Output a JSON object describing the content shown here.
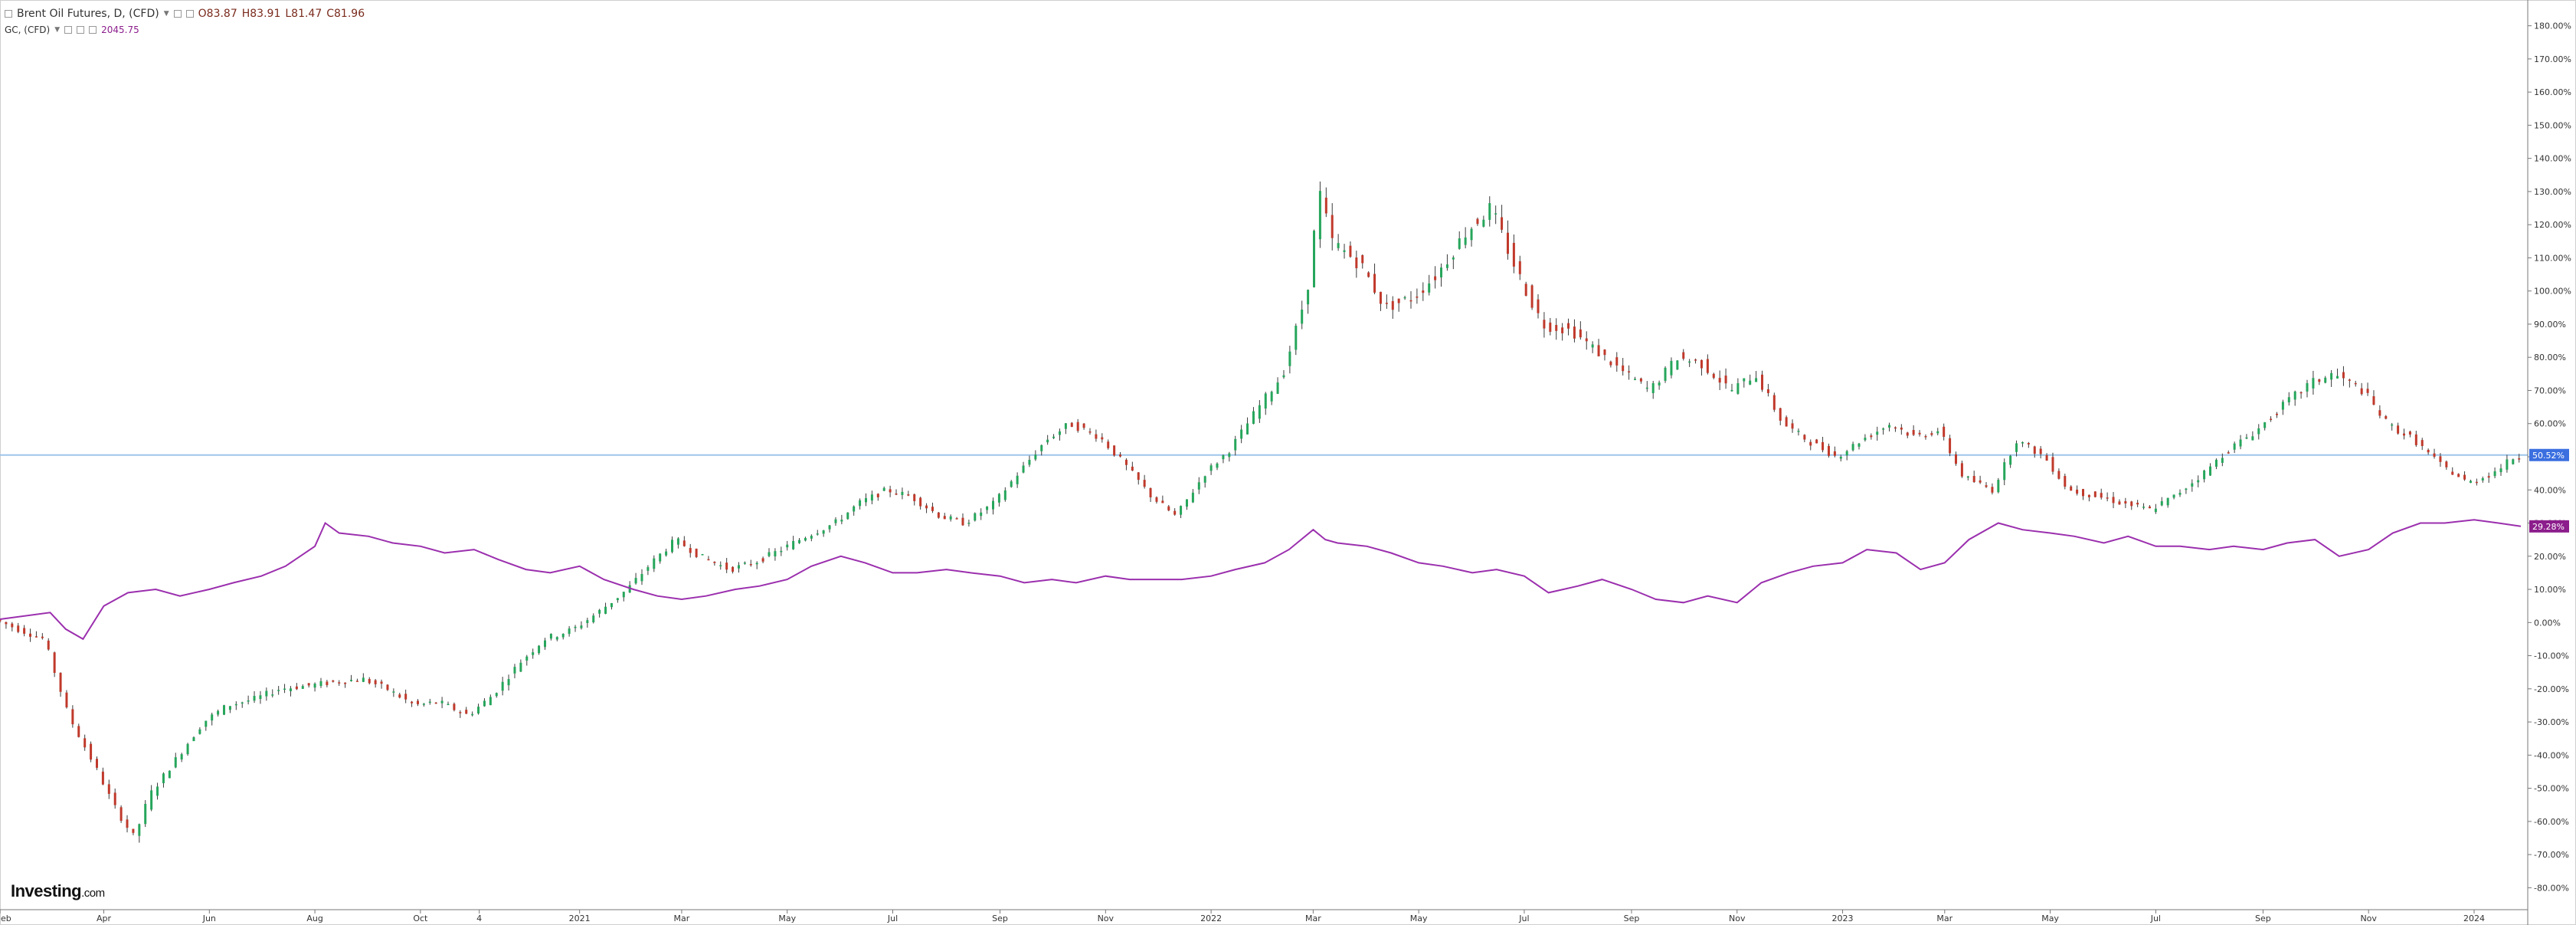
{
  "legend": {
    "symbol": "Brent Oil Futures, D, (CFD)",
    "open_label": "O83.87",
    "high_label": "H83.91",
    "low_label": "L81.47",
    "close_label": "C81.96",
    "gc_symbol": "GC, (CFD)",
    "gc_value": "2045.75"
  },
  "logo": {
    "main": "Investing",
    "suffix": ".com"
  },
  "colors": {
    "up": "#26a65b",
    "down": "#c0392b",
    "wick": "#3a3a3a",
    "gold_line": "#9b2fae",
    "hline": "#9ec5ea",
    "oil_badge": "#3b6fe0",
    "gold_badge": "#8c1d8c",
    "axis": "#555555"
  },
  "chart_data": {
    "type": "line",
    "title": "Brent Oil Futures, D, (CFD)",
    "ylim": [
      -85,
      185
    ],
    "y_ticks": [
      "180.00%",
      "170.00%",
      "160.00%",
      "150.00%",
      "140.00%",
      "130.00%",
      "120.00%",
      "110.00%",
      "100.00%",
      "90.00%",
      "80.00%",
      "70.00%",
      "60.00%",
      "50.00%",
      "40.00%",
      "30.00%",
      "20.00%",
      "10.00%",
      "0.00%",
      "-10.00%",
      "-20.00%",
      "-30.00%",
      "-40.00%",
      "-50.00%",
      "-60.00%",
      "-70.00%",
      "-80.00%"
    ],
    "y_tick_values": [
      180,
      170,
      160,
      150,
      140,
      130,
      120,
      110,
      100,
      90,
      80,
      70,
      60,
      50,
      40,
      30,
      20,
      10,
      0,
      -10,
      -20,
      -30,
      -40,
      -50,
      -60,
      -70,
      -80
    ],
    "x_ticks": [
      "eb",
      "Apr",
      "Jun",
      "Aug",
      "Oct",
      "4",
      "2021",
      "Mar",
      "May",
      "Jul",
      "Sep",
      "Nov",
      "2022",
      "Mar",
      "May",
      "Jul",
      "Sep",
      "Nov",
      "2023",
      "Mar",
      "May",
      "Jul",
      "Sep",
      "Nov",
      "2024"
    ],
    "x_tick_values": [
      "2020-02-01",
      "2020-04-01",
      "2020-06-01",
      "2020-08-01",
      "2020-10-01",
      "2020-11-04",
      "2021-01-01",
      "2021-03-01",
      "2021-05-01",
      "2021-07-01",
      "2021-09-01",
      "2021-11-01",
      "2022-01-01",
      "2022-03-01",
      "2022-05-01",
      "2022-07-01",
      "2022-09-01",
      "2022-11-01",
      "2023-01-01",
      "2023-03-01",
      "2023-05-01",
      "2023-07-01",
      "2023-09-01",
      "2023-11-01",
      "2024-01-01"
    ],
    "xlim": [
      "2020-02-01",
      "2024-02-01"
    ],
    "reference_line": 50.52,
    "badges": [
      "50.52%",
      "29.28%"
    ],
    "series": [
      {
        "name": "Brent Oil Futures, D, (CFD)",
        "kind": "candlestick",
        "x": [
          "2020-02-01",
          "2020-02-15",
          "2020-03-01",
          "2020-03-15",
          "2020-04-01",
          "2020-04-10",
          "2020-04-22",
          "2020-05-01",
          "2020-05-15",
          "2020-06-01",
          "2020-06-15",
          "2020-07-01",
          "2020-07-15",
          "2020-08-01",
          "2020-08-15",
          "2020-09-01",
          "2020-09-15",
          "2020-10-01",
          "2020-10-15",
          "2020-11-01",
          "2020-11-15",
          "2020-12-01",
          "2020-12-15",
          "2021-01-01",
          "2021-01-15",
          "2021-02-01",
          "2021-02-15",
          "2021-03-01",
          "2021-03-15",
          "2021-04-01",
          "2021-04-15",
          "2021-05-01",
          "2021-05-15",
          "2021-06-01",
          "2021-06-15",
          "2021-07-01",
          "2021-07-15",
          "2021-08-01",
          "2021-08-15",
          "2021-09-01",
          "2021-09-15",
          "2021-10-01",
          "2021-10-15",
          "2021-11-01",
          "2021-11-15",
          "2021-12-01",
          "2021-12-15",
          "2022-01-01",
          "2022-01-15",
          "2022-02-01",
          "2022-02-15",
          "2022-03-01",
          "2022-03-08",
          "2022-03-15",
          "2022-04-01",
          "2022-04-15",
          "2022-05-01",
          "2022-05-15",
          "2022-06-01",
          "2022-06-15",
          "2022-07-01",
          "2022-07-15",
          "2022-08-01",
          "2022-08-15",
          "2022-09-01",
          "2022-09-15",
          "2022-10-01",
          "2022-10-15",
          "2022-11-01",
          "2022-11-15",
          "2022-12-01",
          "2022-12-15",
          "2023-01-01",
          "2023-01-15",
          "2023-02-01",
          "2023-02-15",
          "2023-03-01",
          "2023-03-15",
          "2023-04-01",
          "2023-04-15",
          "2023-05-01",
          "2023-05-15",
          "2023-06-01",
          "2023-06-15",
          "2023-07-01",
          "2023-07-15",
          "2023-08-01",
          "2023-08-15",
          "2023-09-01",
          "2023-09-15",
          "2023-10-01",
          "2023-10-15",
          "2023-11-01",
          "2023-11-15",
          "2023-12-01",
          "2023-12-15",
          "2024-01-01",
          "2024-01-15",
          "2024-01-28"
        ],
        "values": [
          1,
          -2,
          -5,
          -28,
          -45,
          -55,
          -65,
          -52,
          -42,
          -30,
          -25,
          -23,
          -20,
          -19,
          -18,
          -17,
          -20,
          -25,
          -24,
          -28,
          -22,
          -12,
          -5,
          -2,
          3,
          10,
          18,
          25,
          20,
          16,
          18,
          22,
          26,
          30,
          36,
          40,
          38,
          32,
          30,
          36,
          45,
          55,
          60,
          56,
          48,
          38,
          32,
          45,
          52,
          65,
          75,
          100,
          130,
          115,
          108,
          95,
          98,
          105,
          118,
          125,
          105,
          90,
          88,
          82,
          75,
          70,
          80,
          78,
          70,
          75,
          60,
          55,
          50,
          55,
          60,
          56,
          58,
          44,
          40,
          55,
          50,
          40,
          38,
          36,
          34,
          38,
          45,
          52,
          58,
          65,
          72,
          75,
          70,
          60,
          55,
          48,
          42,
          45,
          50
        ]
      },
      {
        "name": "GC, (CFD)",
        "kind": "line",
        "x": [
          "2020-02-01",
          "2020-03-01",
          "2020-03-10",
          "2020-03-20",
          "2020-04-01",
          "2020-04-15",
          "2020-05-01",
          "2020-05-15",
          "2020-06-01",
          "2020-06-15",
          "2020-07-01",
          "2020-07-15",
          "2020-08-01",
          "2020-08-07",
          "2020-08-15",
          "2020-09-01",
          "2020-09-15",
          "2020-10-01",
          "2020-10-15",
          "2020-11-01",
          "2020-11-15",
          "2020-12-01",
          "2020-12-15",
          "2021-01-01",
          "2021-01-15",
          "2021-02-01",
          "2021-02-15",
          "2021-03-01",
          "2021-03-15",
          "2021-04-01",
          "2021-04-15",
          "2021-05-01",
          "2021-05-15",
          "2021-06-01",
          "2021-06-15",
          "2021-07-01",
          "2021-07-15",
          "2021-08-01",
          "2021-08-15",
          "2021-09-01",
          "2021-09-15",
          "2021-10-01",
          "2021-10-15",
          "2021-11-01",
          "2021-11-15",
          "2021-12-01",
          "2021-12-15",
          "2022-01-01",
          "2022-01-15",
          "2022-02-01",
          "2022-02-15",
          "2022-03-01",
          "2022-03-08",
          "2022-03-15",
          "2022-04-01",
          "2022-04-15",
          "2022-05-01",
          "2022-05-15",
          "2022-06-01",
          "2022-06-15",
          "2022-07-01",
          "2022-07-15",
          "2022-08-01",
          "2022-08-15",
          "2022-09-01",
          "2022-09-15",
          "2022-10-01",
          "2022-10-15",
          "2022-11-01",
          "2022-11-15",
          "2022-12-01",
          "2022-12-15",
          "2023-01-01",
          "2023-01-15",
          "2023-02-01",
          "2023-02-15",
          "2023-03-01",
          "2023-03-15",
          "2023-04-01",
          "2023-04-15",
          "2023-05-01",
          "2023-05-15",
          "2023-06-01",
          "2023-06-15",
          "2023-07-01",
          "2023-07-15",
          "2023-08-01",
          "2023-08-15",
          "2023-09-01",
          "2023-09-15",
          "2023-10-01",
          "2023-10-15",
          "2023-11-01",
          "2023-11-15",
          "2023-12-01",
          "2023-12-15",
          "2024-01-01",
          "2024-01-15",
          "2024-01-28"
        ],
        "values": [
          1,
          3,
          -2,
          -5,
          5,
          9,
          10,
          8,
          10,
          12,
          14,
          17,
          23,
          30,
          27,
          26,
          24,
          23,
          21,
          22,
          19,
          16,
          15,
          17,
          13,
          10,
          8,
          7,
          8,
          10,
          11,
          13,
          17,
          20,
          18,
          15,
          15,
          16,
          15,
          14,
          12,
          13,
          12,
          14,
          13,
          13,
          13,
          14,
          16,
          18,
          22,
          28,
          25,
          24,
          23,
          21,
          18,
          17,
          15,
          16,
          14,
          9,
          11,
          13,
          10,
          7,
          6,
          8,
          6,
          12,
          15,
          17,
          18,
          22,
          21,
          16,
          18,
          25,
          30,
          28,
          27,
          26,
          24,
          26,
          23,
          23,
          22,
          23,
          22,
          24,
          25,
          20,
          22,
          27,
          30,
          30,
          31,
          30,
          29
        ]
      }
    ]
  }
}
